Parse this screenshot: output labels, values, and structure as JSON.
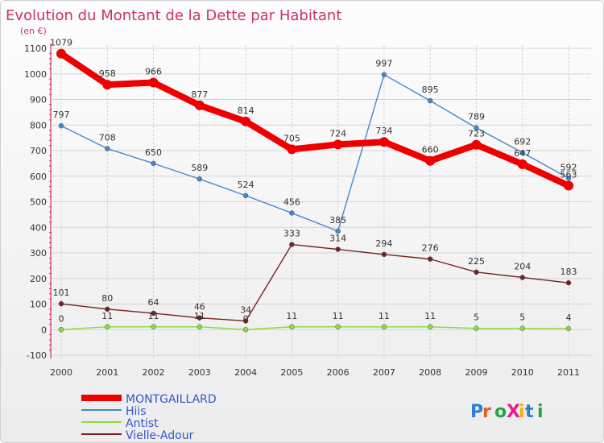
{
  "chart_data": {
    "type": "line",
    "title": "Evolution du Montant de la Dette par Habitant",
    "subtitle": "(en €)",
    "x": [
      "2000",
      "2001",
      "2002",
      "2003",
      "2004",
      "2005",
      "2006",
      "2007",
      "2008",
      "2009",
      "2010",
      "2011"
    ],
    "ylim": [
      -100,
      1100
    ],
    "yticks": [
      "-100",
      "0",
      "100",
      "200",
      "300",
      "400",
      "500",
      "600",
      "700",
      "800",
      "900",
      "1000",
      "1100"
    ],
    "grid": true,
    "legend": "bottom-left",
    "series": [
      {
        "name": "MONTGAILLARD",
        "color": "#ee0000",
        "values": [
          1079,
          958,
          966,
          877,
          814,
          705,
          724,
          734,
          660,
          723,
          647,
          563
        ],
        "labels": [
          "1079",
          "958",
          "966",
          "877",
          "814",
          "705",
          "724",
          "734",
          "660",
          "723",
          "647",
          "563"
        ]
      },
      {
        "name": "Hiis",
        "color": "#4488cc",
        "values": [
          797,
          708,
          650,
          589,
          524,
          456,
          385,
          997,
          895,
          789,
          692,
          592
        ],
        "labels": [
          "797",
          "708",
          "650",
          "589",
          "524",
          "456",
          "385",
          "997",
          "895",
          "789",
          "692",
          "592"
        ]
      },
      {
        "name": "Antist",
        "color": "#88dd44",
        "values": [
          0,
          11,
          11,
          11,
          0,
          11,
          11,
          11,
          11,
          5,
          5,
          4
        ],
        "labels": [
          "0",
          "11",
          "11",
          "11",
          "0",
          "11",
          "11",
          "11",
          "11",
          "5",
          "5",
          "4"
        ]
      },
      {
        "name": "Vielle-Adour",
        "color": "#772222",
        "values": [
          101,
          80,
          64,
          46,
          34,
          333,
          314,
          294,
          276,
          225,
          204,
          183
        ],
        "labels": [
          "101",
          "80",
          "64",
          "46",
          "34",
          "333",
          "314",
          "294",
          "276",
          "225",
          "204",
          "183"
        ]
      }
    ]
  },
  "watermark": "ProXiti"
}
